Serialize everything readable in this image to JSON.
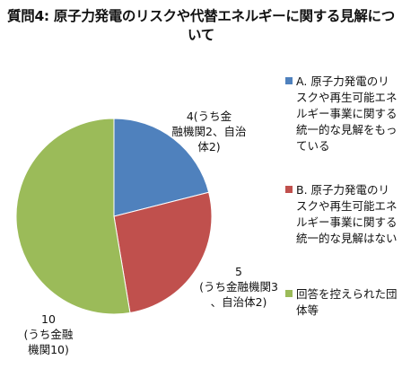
{
  "chart_data": {
    "type": "pie",
    "title": "質問4: 原子力発電のリスクや代替エネルギーに関する見解について",
    "series": [
      {
        "name": "A. 原子力発電のリスクや再生可能エネルギー事業に関する統一的な見解をもっている",
        "value": 4,
        "color": "#4f81bd",
        "label": "4(うち金融機関2、自治体2)"
      },
      {
        "name": "B. 原子力発電のリスクや再生可能エネルギー事業に関する統一的な見解はない",
        "value": 5,
        "color": "#c0504d",
        "label": "5 (うち金融機関3、自治体2)"
      },
      {
        "name": "回答を控えられた団体等",
        "value": 10,
        "color": "#9bbb59",
        "label": "10 (うち金融機関10)"
      }
    ]
  }
}
